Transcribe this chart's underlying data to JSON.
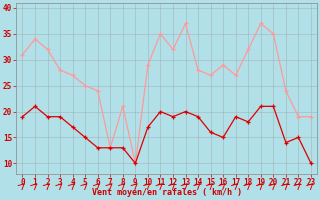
{
  "hours": [
    0,
    1,
    2,
    3,
    4,
    5,
    6,
    7,
    8,
    9,
    10,
    11,
    12,
    13,
    14,
    15,
    16,
    17,
    18,
    19,
    20,
    21,
    22,
    23
  ],
  "wind_avg": [
    19,
    21,
    19,
    19,
    17,
    15,
    13,
    13,
    13,
    10,
    17,
    20,
    19,
    20,
    19,
    16,
    15,
    19,
    18,
    21,
    21,
    14,
    15,
    10
  ],
  "wind_gust": [
    31,
    34,
    32,
    28,
    27,
    25,
    24,
    13,
    21,
    10,
    29,
    35,
    32,
    37,
    28,
    27,
    29,
    27,
    32,
    37,
    35,
    24,
    19,
    19
  ],
  "bg_color": "#b2e0e8",
  "grid_color": "#999999",
  "line_avg_color": "#dd0000",
  "line_gust_color": "#ff9999",
  "xlabel": "Vent moyen/en rafales ( km/h )",
  "xlabel_color": "#cc0000",
  "tick_color": "#cc0000",
  "yticks": [
    10,
    15,
    20,
    25,
    30,
    35,
    40
  ],
  "ymin": 8,
  "ymax": 41
}
